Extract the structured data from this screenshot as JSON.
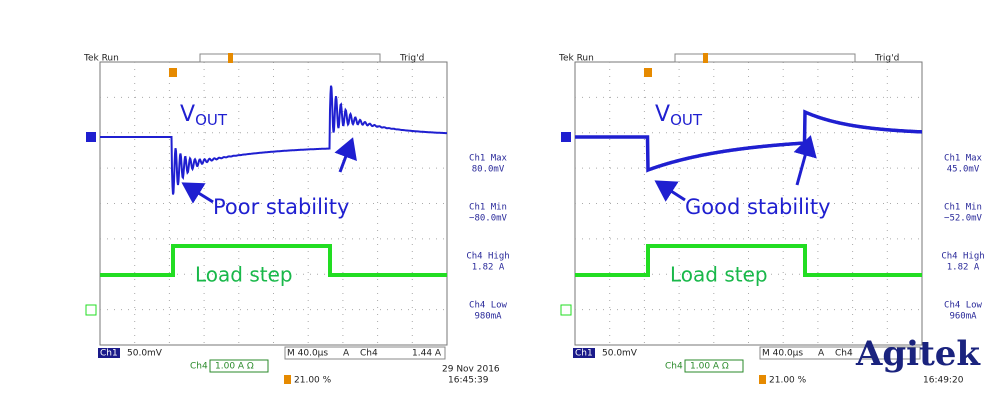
{
  "panels": [
    {
      "header": {
        "status": "Tek Run",
        "trigger": "Trig'd"
      },
      "vout": {
        "main": "V",
        "sub": "OUT"
      },
      "annotation": "Poor stability",
      "load_label": "Load step",
      "readouts": [
        {
          "label": "Ch1 Max",
          "value": "80.0mV"
        },
        {
          "label": "Ch1 Min",
          "value": "−80.0mV"
        },
        {
          "label": "Ch4 High",
          "value": "1.82 A"
        },
        {
          "label": "Ch4 Low",
          "value": "980mA"
        }
      ],
      "footer": {
        "ch1": "Ch1",
        "ch1_scale": "50.0mV",
        "timebase": "M 40.0µs",
        "mode": "A",
        "trig_src": "Ch4",
        "trig_level": "1.44 A",
        "ch4": "Ch4",
        "ch4_scale": "1.00 A Ω",
        "position": "21.00 %",
        "date": "29 Nov 2016",
        "time": "16:45:39"
      }
    },
    {
      "header": {
        "status": "Tek Run",
        "trigger": "Trig'd"
      },
      "vout": {
        "main": "V",
        "sub": "OUT"
      },
      "annotation": "Good stability",
      "load_label": "Load step",
      "readouts": [
        {
          "label": "Ch1 Max",
          "value": "45.0mV"
        },
        {
          "label": "Ch1 Min",
          "value": "−52.0mV"
        },
        {
          "label": "Ch4 High",
          "value": "1.82 A"
        },
        {
          "label": "Ch4 Low",
          "value": "960mA"
        }
      ],
      "footer": {
        "ch1": "Ch1",
        "ch1_scale": "50.0mV",
        "timebase": "M 40.0µs",
        "mode": "A",
        "trig_src": "Ch4",
        "ch4": "Ch4",
        "ch4_scale": "1.00 A Ω",
        "position": "21.00 %",
        "time": "16:49:20"
      }
    }
  ],
  "logo": "Agitek"
}
